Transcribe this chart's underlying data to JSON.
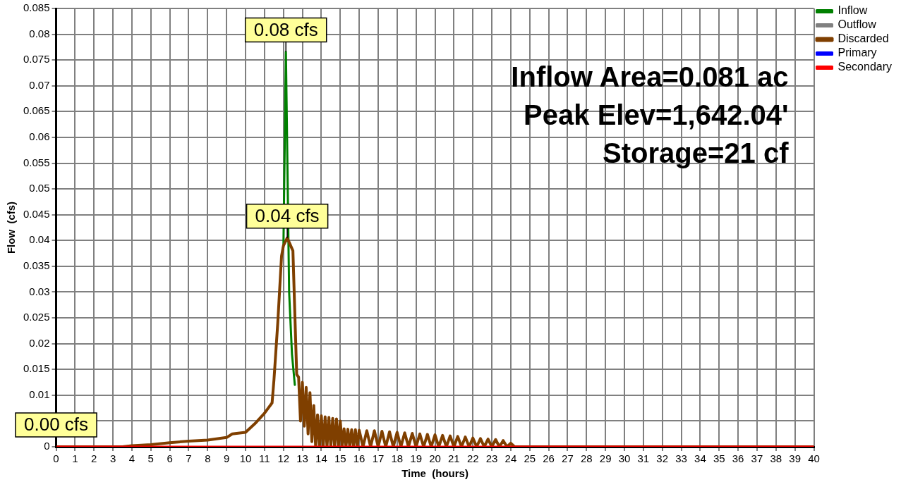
{
  "chart_data": {
    "type": "line",
    "xlabel": "Time  (hours)",
    "ylabel": "Flow  (cfs)",
    "xlim": [
      0,
      40
    ],
    "xticks": [
      0,
      1,
      2,
      3,
      4,
      5,
      6,
      7,
      8,
      9,
      10,
      11,
      12,
      13,
      14,
      15,
      16,
      17,
      18,
      19,
      20,
      21,
      22,
      23,
      24,
      25,
      26,
      27,
      28,
      29,
      30,
      31,
      32,
      33,
      34,
      35,
      36,
      37,
      38,
      39,
      40
    ],
    "ylim": [
      0,
      0.085
    ],
    "yticks": [
      0,
      {
        "value": 0.005,
        "label": null
      },
      0.01,
      0.015,
      0.02,
      0.025,
      0.03,
      0.035,
      0.04,
      0.045,
      0.05,
      0.055,
      0.06,
      0.065,
      0.07,
      0.075,
      0.08,
      0.085
    ],
    "grid": true,
    "legend": "top right",
    "marker": "none",
    "line_style": "solid",
    "series": [
      {
        "name": "Inflow",
        "color": "#008000",
        "x": [
          11.95,
          12.0,
          12.13,
          12.3,
          12.45,
          12.6
        ],
        "values": [
          0.038,
          0.039,
          0.0766,
          0.03,
          0.018,
          0.012
        ]
      },
      {
        "name": "Outflow",
        "color": "#808080"
      },
      {
        "name": "Discarded",
        "color": "#7f3f00",
        "x": [
          0,
          3.5,
          4,
          5,
          6,
          7,
          8,
          9,
          9.3,
          10,
          10.5,
          11,
          11.4,
          11.5,
          11.7,
          11.9,
          12.0,
          12.2,
          12.5,
          12.7,
          12.8,
          12.9,
          13.0,
          13.1,
          13.2,
          13.3,
          13.4,
          13.5,
          13.6,
          13.7,
          13.8,
          13.9,
          14.0,
          14.1,
          14.2,
          14.3,
          14.4,
          14.5,
          14.6,
          14.7,
          14.8,
          14.9,
          15.0,
          15.1,
          15.2,
          15.3,
          15.4,
          15.5,
          15.6,
          15.7,
          15.8,
          15.9,
          16.0,
          16.2,
          16.4,
          16.6,
          16.8,
          17.0,
          17.2,
          17.4,
          17.6,
          17.8,
          18.0,
          18.2,
          18.4,
          18.6,
          18.8,
          19.0,
          19.2,
          19.4,
          19.6,
          19.8,
          20.0,
          20.2,
          20.4,
          20.6,
          20.8,
          21.0,
          21.2,
          21.4,
          21.6,
          21.8,
          22.0,
          22.2,
          22.4,
          22.6,
          22.8,
          23.0,
          23.2,
          23.4,
          23.6,
          23.8,
          24.0,
          24.2,
          40
        ],
        "values": [
          0,
          0,
          0.0002,
          0.0004,
          0.0008,
          0.0011,
          0.0013,
          0.0018,
          0.0025,
          0.0028,
          0.0045,
          0.0065,
          0.0085,
          0.013,
          0.024,
          0.037,
          0.039,
          0.0405,
          0.038,
          0.014,
          0.0135,
          0.005,
          0.0125,
          0.004,
          0.0115,
          0.0025,
          0.0105,
          0.001,
          0.008,
          0,
          0.0062,
          0,
          0.006,
          0,
          0.0058,
          0,
          0.0057,
          0,
          0.0055,
          0,
          0.0054,
          0,
          0.005,
          0,
          0.0035,
          0,
          0.0034,
          0,
          0.0033,
          0,
          0.0033,
          0,
          0.0032,
          0,
          0.0031,
          0,
          0.0031,
          0,
          0.003,
          0,
          0.0029,
          0,
          0.0028,
          0,
          0.0027,
          0,
          0.0026,
          0,
          0.0025,
          0,
          0.0024,
          0,
          0.0023,
          0,
          0.0022,
          0,
          0.0021,
          0,
          0.002,
          0,
          0.0019,
          0,
          0.0017,
          0,
          0.0016,
          0,
          0.0015,
          0,
          0.0014,
          0,
          0.0012,
          0,
          0.0007,
          0,
          0
        ]
      },
      {
        "name": "Primary",
        "color": "#0000ff"
      },
      {
        "name": "Secondary",
        "color": "#ff0000",
        "x": [
          0,
          40
        ],
        "values": [
          0,
          0
        ]
      }
    ],
    "annotations": [
      {
        "text": "0.08 cfs",
        "x": 12.13,
        "y": 0.0766
      },
      {
        "text": "0.04 cfs",
        "x": 12.2,
        "y": 0.0405
      },
      {
        "text": "0.00 cfs",
        "x": 0,
        "y": 0
      },
      "Inflow Area=0.081 ac",
      "Peak Elev=1,642.04'",
      "Storage=21 cf"
    ]
  }
}
